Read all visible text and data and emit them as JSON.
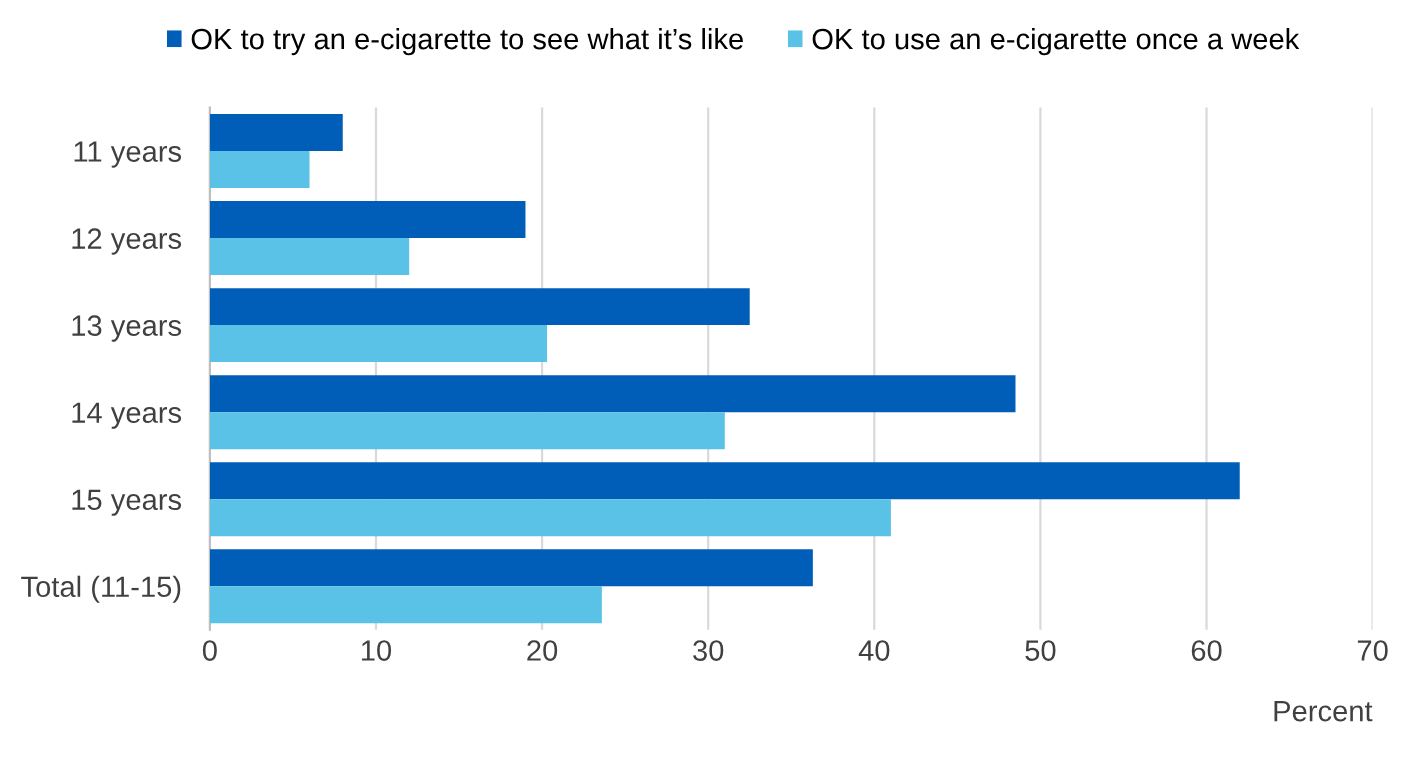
{
  "chart_data": {
    "type": "bar",
    "orientation": "horizontal",
    "categories": [
      "11 years",
      "12 years",
      "13 years",
      "14 years",
      "15 years",
      "Total (11-15)"
    ],
    "series": [
      {
        "name": "OK to try an e-cigarette to see what it’s like",
        "color": "#005eb8",
        "values": [
          8,
          19,
          32.5,
          48.5,
          62,
          36.3
        ]
      },
      {
        "name": "OK to use an e-cigarette once a week",
        "color": "#5bc2e7",
        "values": [
          6,
          12,
          20.3,
          31,
          41,
          23.6
        ]
      }
    ],
    "xlim": [
      0,
      70
    ],
    "xticks": [
      0,
      10,
      20,
      30,
      40,
      50,
      60,
      70
    ],
    "xlabel": "Percent",
    "grid": "x",
    "legend": "top"
  }
}
